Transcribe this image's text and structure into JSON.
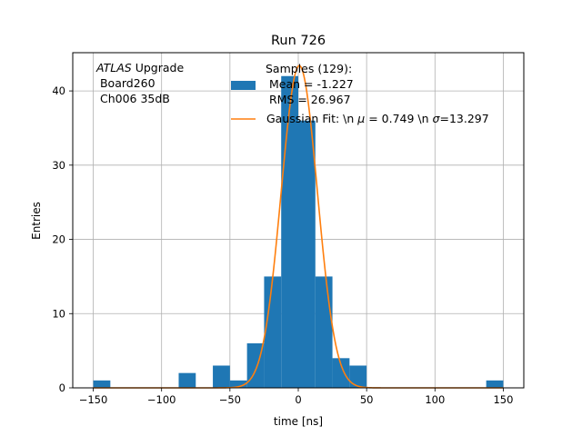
{
  "chart_data": {
    "type": "bar",
    "title": "Run 726",
    "xlabel": "time [ns]",
    "ylabel": "Entries",
    "xlim": [
      -165,
      165
    ],
    "ylim": [
      0,
      45.15
    ],
    "xticks": [
      -150,
      -100,
      -50,
      0,
      50,
      100,
      150
    ],
    "yticks": [
      0,
      10,
      20,
      30,
      40
    ],
    "grid": true,
    "annotation": {
      "atlas": "ATLAS",
      "line1_suffix": " Upgrade",
      "line2": " Board260",
      "line3": " Ch006 35dB"
    },
    "legend": {
      "placement": "top-right",
      "samples": {
        "line1": "Samples (129):",
        "line2": " Mean = -1.227",
        "line3": " RMS = 26.967",
        "color": "#1f77b4"
      },
      "fit": {
        "prefix": "Gaussian Fit: \\n ",
        "mu_symbol": "μ",
        "mu_value": " = 0.749 \\n ",
        "sigma_symbol": "σ",
        "sigma_value": "=13.297",
        "color": "#ff7f0e"
      }
    },
    "histogram": {
      "bin_edges": [
        -150,
        -137.5,
        -125,
        -112.5,
        -100,
        -87.5,
        -75,
        -62.5,
        -50,
        -37.5,
        -25,
        -12.5,
        0,
        12.5,
        25,
        37.5,
        50,
        62.5,
        75,
        87.5,
        100,
        112.5,
        125,
        137.5,
        150
      ],
      "counts": [
        1,
        0,
        0,
        0,
        0,
        2,
        0,
        3,
        1,
        6,
        15,
        42,
        36,
        15,
        4,
        3,
        0,
        0,
        0,
        0,
        0,
        0,
        0,
        1
      ],
      "color": "#1f77b4"
    },
    "gaussian_fit": {
      "amplitude": 43.4,
      "mu": 0.749,
      "sigma": 13.297,
      "x_range": [
        -150,
        150
      ],
      "color": "#ff7f0e"
    }
  }
}
